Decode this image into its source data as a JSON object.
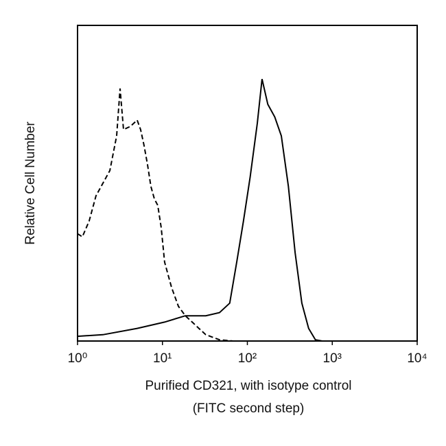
{
  "chart_data": {
    "type": "line",
    "xlabel": [
      "Purified CD321, with isotype control",
      "(FITC second step)"
    ],
    "ylabel": "Relative Cell Number",
    "xscale": "log",
    "xlim": [
      1,
      10000
    ],
    "xticks": [
      {
        "value": 1,
        "label": "10⁰"
      },
      {
        "value": 10,
        "label": "10¹"
      },
      {
        "value": 100,
        "label": "10²"
      },
      {
        "value": 1000,
        "label": "10³"
      },
      {
        "value": 10000,
        "label": "10⁴"
      }
    ],
    "ylim": [
      0,
      100
    ],
    "grid": false,
    "series": [
      {
        "color": "#000000",
        "dash": "7,4",
        "x": [
          1,
          1.14,
          1.37,
          1.65,
          1.99,
          2.4,
          2.89,
          3.17,
          3.48,
          4.19,
          5.04,
          5.53,
          6.07,
          6.66,
          7.31,
          8.03,
          8.81,
          9.67,
          10.6,
          12.8,
          15.4,
          18.6,
          22.4,
          26.9,
          32.4,
          47,
          68
        ],
        "values": [
          34,
          33,
          38,
          46,
          50,
          54,
          65,
          80,
          67,
          68,
          70,
          67,
          62,
          56,
          49,
          45,
          43,
          36,
          25,
          17,
          11,
          8,
          6,
          4,
          2,
          0.4,
          0
        ]
      },
      {
        "color": "#000000",
        "dash": "none",
        "x": [
          1,
          1.99,
          5.04,
          10.6,
          18.6,
          32.4,
          47,
          62,
          75,
          90,
          108,
          131,
          149,
          174,
          210,
          251,
          304,
          365,
          438,
          527,
          633,
          762
        ],
        "values": [
          1.5,
          2,
          4,
          6,
          8,
          8,
          9,
          12,
          25,
          38,
          52,
          69,
          83,
          75,
          71,
          65,
          49,
          28,
          12,
          4,
          0.4,
          0
        ]
      }
    ]
  }
}
